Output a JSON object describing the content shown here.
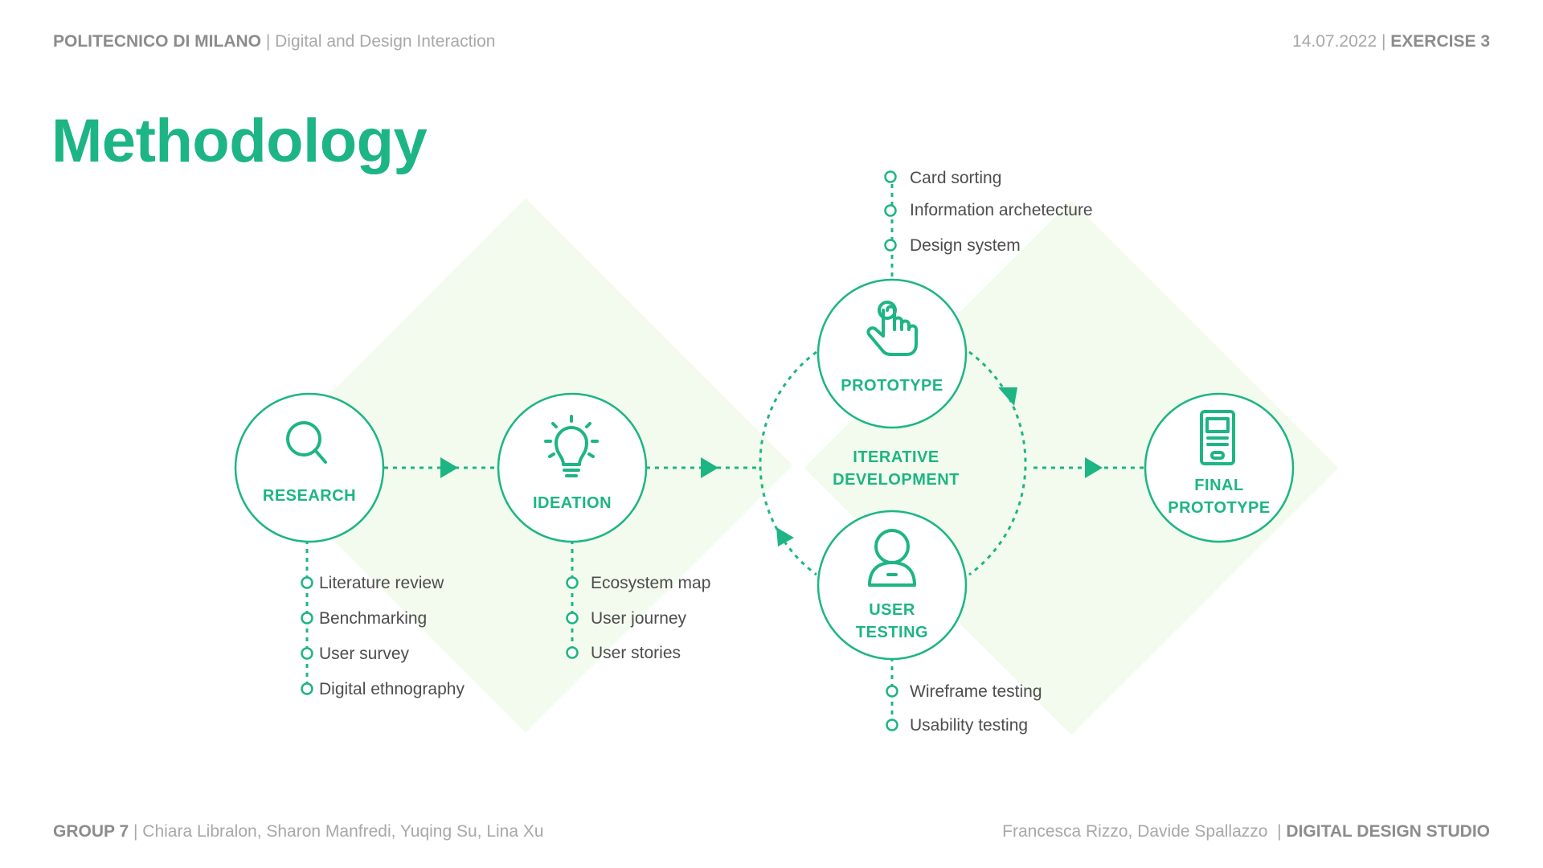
{
  "header": {
    "institution": "POLITECNICO DI MILANO",
    "course": "Digital and Design Interaction",
    "date": "14.07.2022",
    "exercise": "EXERCISE 3"
  },
  "title": "Methodology",
  "footer": {
    "group": "GROUP 7",
    "members": "Chiara Libralon, Sharon Manfredi, Yuqing Su, Lina Xu",
    "professors": "Francesca Rizzo, Davide Spallazzo",
    "studio": "DIGITAL DESIGN STUDIO"
  },
  "colors": {
    "accent": "#1db584",
    "background_shape": "#f2fbee",
    "text": "#4d4d4d",
    "muted": "#a8a8a8"
  },
  "diagram": {
    "center_label": [
      "ITERATIVE",
      "DEVELOPMENT"
    ],
    "nodes": [
      {
        "id": "research",
        "icon": "magnifier-icon",
        "label": [
          "RESEARCH"
        ],
        "items": [
          "Literature review",
          "Benchmarking",
          "User survey",
          "Digital ethnography"
        ]
      },
      {
        "id": "ideation",
        "icon": "lightbulb-icon",
        "label": [
          "IDEATION"
        ],
        "items": [
          "Ecosystem map",
          "User journey",
          "User stories"
        ]
      },
      {
        "id": "prototype",
        "icon": "pointing-hand-icon",
        "label": [
          "PROTOTYPE"
        ],
        "items": [
          "Card sorting",
          "Information archetecture",
          "Design system"
        ]
      },
      {
        "id": "user-testing",
        "icon": "user-icon",
        "label": [
          "USER",
          "TESTING"
        ],
        "items": [
          "Wireframe testing",
          "Usability testing"
        ]
      },
      {
        "id": "final-prototype",
        "icon": "device-icon",
        "label": [
          "FINAL",
          "PROTOTYPE"
        ],
        "items": []
      }
    ]
  }
}
